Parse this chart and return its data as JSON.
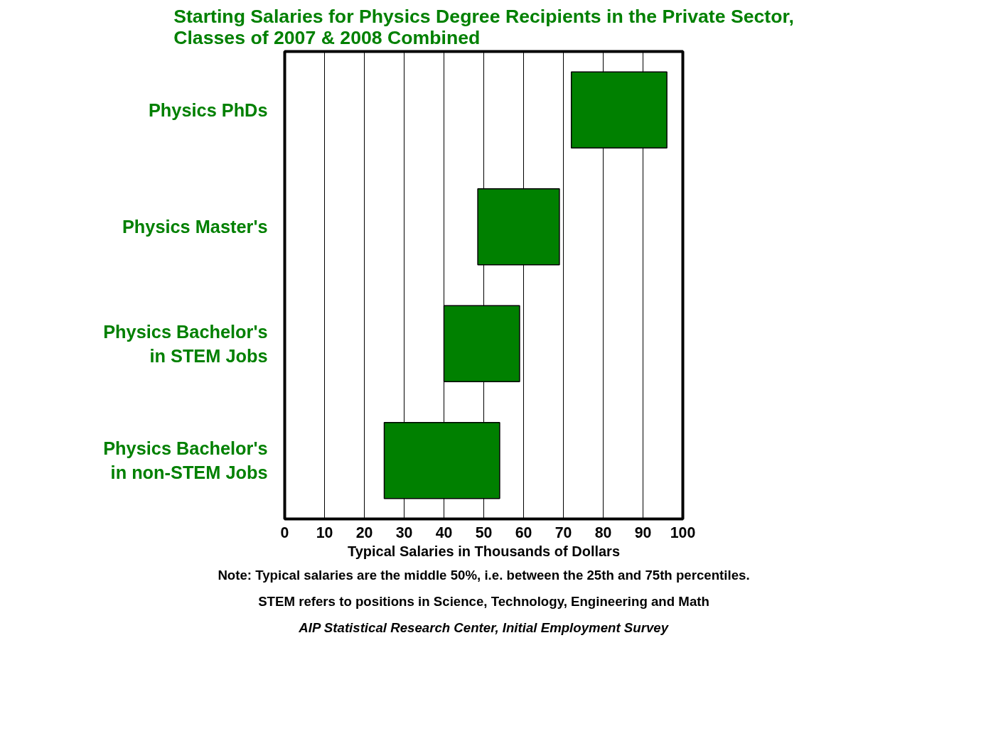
{
  "chart_data": {
    "type": "bar",
    "orientation": "horizontal",
    "title": "Starting Salaries for Physics Degree Recipients in the Private Sector,\nClasses of 2007 & 2008 Combined",
    "categories": [
      "Physics PhDs",
      "Physics Master's",
      "Physics Bachelor's\nin STEM Jobs",
      "Physics Bachelor's\nin non-STEM Jobs"
    ],
    "base": [
      72,
      48.5,
      40,
      25
    ],
    "values": [
      24,
      20.5,
      19,
      29
    ],
    "color": "#008000",
    "xlim": [
      0,
      100
    ],
    "xticks": [
      0,
      10,
      20,
      30,
      40,
      50,
      60,
      70,
      80,
      90,
      100
    ],
    "xlabel": "Typical Salaries in Thousands of Dollars",
    "grid": "x",
    "annotations": [
      "Note: Typical salaries are the middle 50%, i.e. between the 25th and 75th percentiles.",
      "STEM refers to positions in Science, Technology, Engineering and Math",
      "AIP Statistical Research Center, Initial Employment Survey"
    ]
  }
}
